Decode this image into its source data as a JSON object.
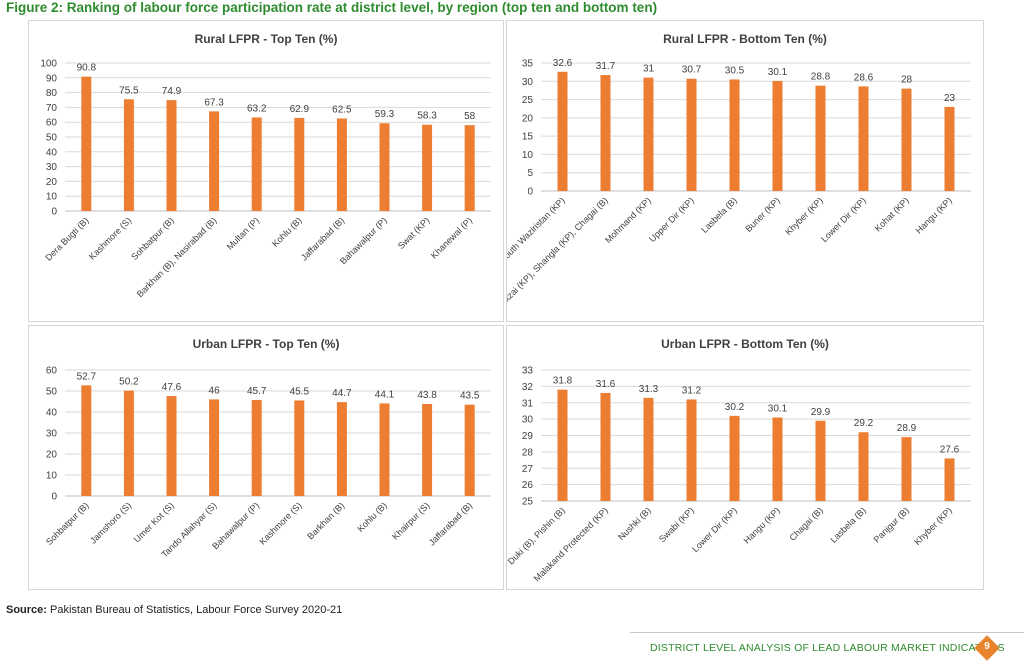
{
  "figure": {
    "title": "Figure 2: Ranking of labour force participation rate at district level, by region (top ten and bottom ten)"
  },
  "source": {
    "label": "Source:",
    "text": " Pakistan Bureau of Statistics, Labour Force Survey 2020-21"
  },
  "footer": {
    "text": "DISTRICT LEVEL ANALYSIS OF LEAD LABOUR MARKET INDICATORS",
    "page_number": "9"
  },
  "colors": {
    "bar": "#ED7D31",
    "title_green": "#2E8B2E",
    "badge": "#E8842C"
  },
  "chart_data": [
    {
      "type": "bar",
      "title": "Rural LFPR - Top Ten (%)",
      "categories": [
        "Dera Bugti (B)",
        "Kashmore (S)",
        "Sohbatpur (B)",
        "Barkhan (B), Nasirabad (B)",
        "Multan (P)",
        "Kohlu (B)",
        "Jaffarabad (B)",
        "Bahawalpur (P)",
        "Swat (KP)",
        "Khanewal (P)"
      ],
      "values": [
        90.8,
        75.5,
        74.9,
        67.3,
        63.2,
        62.9,
        62.5,
        59.3,
        58.3,
        58
      ],
      "ylim": [
        0,
        100
      ],
      "yticks": [
        0,
        10,
        20,
        30,
        40,
        50,
        60,
        70,
        80,
        90,
        100
      ],
      "grid": true,
      "data_labels": true
    },
    {
      "type": "bar",
      "title": "Rural LFPR - Bottom Ten (%)",
      "categories": [
        "South Waziristan (KP)",
        "Orakzai (KP), Shangla (KP), Chagai (B)",
        "Mohmand (KP)",
        "Upper Dir (KP)",
        "Lasbela (B)",
        "Buner (KP)",
        "Khyber (KP)",
        "Lower Dir (KP)",
        "Kohat (KP)",
        "Hangu (KP)"
      ],
      "values": [
        32.6,
        31.7,
        31,
        30.7,
        30.5,
        30.1,
        28.8,
        28.6,
        28,
        23
      ],
      "ylim": [
        0,
        35
      ],
      "yticks": [
        0,
        5,
        10,
        15,
        20,
        25,
        30,
        35
      ],
      "grid": true,
      "data_labels": true
    },
    {
      "type": "bar",
      "title": "Urban LFPR - Top Ten (%)",
      "categories": [
        "Sohbatpur (B)",
        "Jamshoro (S)",
        "Umer Kot (S)",
        "Tando Allahyar (S)",
        "Bahawalpur (P)",
        "Kashmore (S)",
        "Barkhan (B)",
        "Kohlu (B)",
        "Khairpur (S)",
        "Jaffarabad (B)"
      ],
      "values": [
        52.7,
        50.2,
        47.6,
        46,
        45.7,
        45.5,
        44.7,
        44.1,
        43.8,
        43.5
      ],
      "ylim": [
        0,
        60
      ],
      "yticks": [
        0,
        10,
        20,
        30,
        40,
        50,
        60
      ],
      "grid": true,
      "data_labels": true
    },
    {
      "type": "bar",
      "title": "Urban LFPR - Bottom Ten (%)",
      "categories": [
        "Duki (B), Pishin (B)",
        "Malakand Protected (KP)",
        "Nushki (B)",
        "Swabi (KP)",
        "Lower Dir (KP)",
        "Hangu (KP)",
        "Chagai (B)",
        "Lasbela (B)",
        "Panjgur (B)",
        "Khyber (KP)"
      ],
      "values": [
        31.8,
        31.6,
        31.3,
        31.2,
        30.2,
        30.1,
        29.9,
        29.2,
        28.9,
        27.6
      ],
      "ylim": [
        25,
        33
      ],
      "yticks": [
        25,
        26,
        27,
        28,
        29,
        30,
        31,
        32,
        33
      ],
      "grid": true,
      "data_labels": true
    }
  ]
}
